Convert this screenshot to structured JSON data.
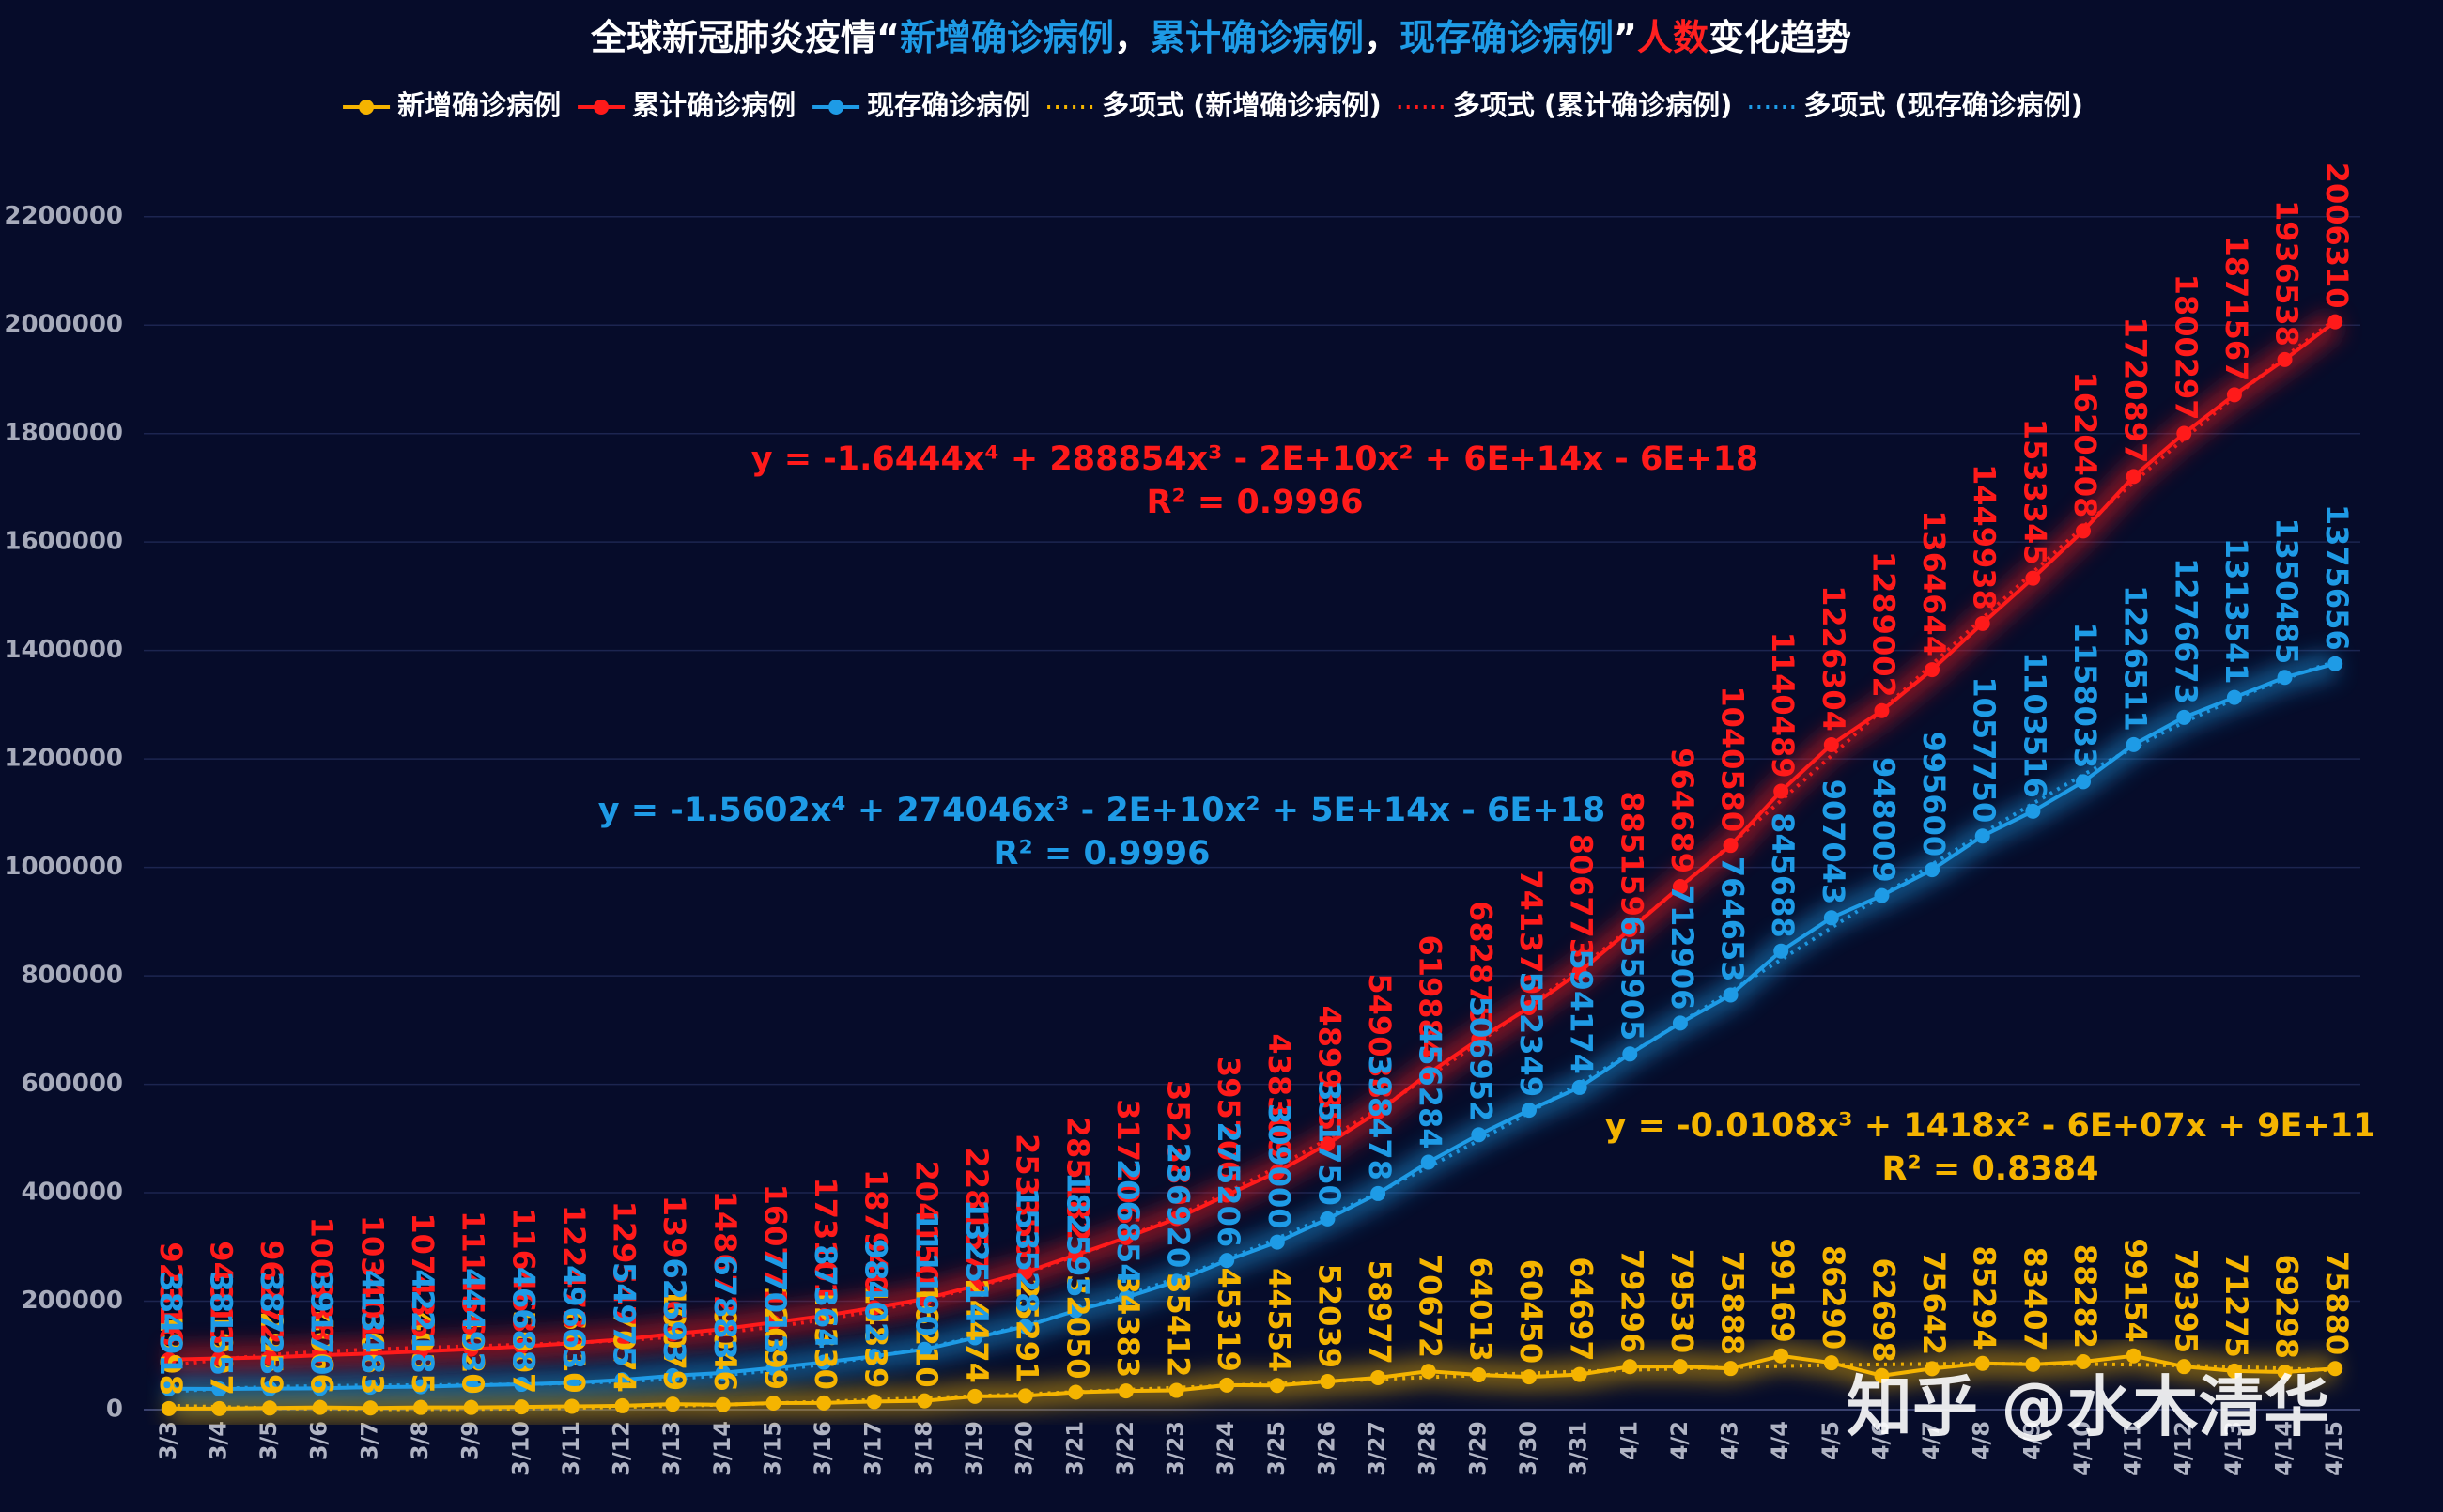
{
  "chart_data": {
    "type": "line",
    "title_parts": [
      {
        "text": "全球新冠肺炎疫情“",
        "color": "#ffffff"
      },
      {
        "text": "新增确诊病例",
        "color": "#1e9be6"
      },
      {
        "text": "，",
        "color": "#ffffff"
      },
      {
        "text": "累计确诊病例",
        "color": "#1e9be6"
      },
      {
        "text": "，",
        "color": "#ffffff"
      },
      {
        "text": "现存确诊病例",
        "color": "#1e9be6"
      },
      {
        "text": "”",
        "color": "#ffffff"
      },
      {
        "text": "人数",
        "color": "#ff2020"
      },
      {
        "text": "变化趋势",
        "color": "#ffffff"
      }
    ],
    "categories": [
      "3/3",
      "3/4",
      "3/5",
      "3/6",
      "3/7",
      "3/8",
      "3/9",
      "3/10",
      "3/11",
      "3/12",
      "3/13",
      "3/14",
      "3/15",
      "3/16",
      "3/17",
      "3/18",
      "3/19",
      "3/20",
      "3/21",
      "3/22",
      "3/23",
      "3/24",
      "3/25",
      "3/26",
      "3/27",
      "3/28",
      "3/29",
      "3/30",
      "3/31",
      "4/1",
      "4/2",
      "4/3",
      "4/4",
      "4/5",
      "4/6",
      "4/7",
      "4/8",
      "4/9",
      "4/10",
      "4/11",
      "4/12",
      "4/13",
      "4/14",
      "4/15"
    ],
    "series": [
      {
        "name": "新增确诊病例",
        "color": "#f5b400",
        "values": [
          1998,
          1997,
          2959,
          4066,
          3063,
          4035,
          4020,
          5007,
          6010,
          7074,
          10079,
          9046,
          12099,
          12330,
          14839,
          16210,
          24474,
          25291,
          32050,
          34383,
          35412,
          45319,
          44554,
          52039,
          58977,
          70672,
          64013,
          60450,
          64697,
          79296,
          79530,
          75888,
          99169,
          86290,
          62698,
          75642,
          85294,
          83407,
          88282,
          99154,
          79395,
          71275,
          69298,
          75880
        ],
        "trendline": {
          "name": "多项式 (新增确诊病例)",
          "degree": 3,
          "equation": "y = -0.0108x³ + 1418x² - 6E+07x + 9E+11",
          "r2": "R² = 0.8384"
        }
      },
      {
        "name": "累计确诊病例",
        "color": "#ff1a1a",
        "values": [
          92316,
          94313,
          96272,
          100338,
          103401,
          107436,
          111456,
          116463,
          122473,
          129547,
          139626,
          148672,
          160771,
          173101,
          187940,
          204150,
          228157,
          253356,
          285182,
          317206,
          352380,
          395700,
          438309,
          489935,
          549038,
          619884,
          682875,
          741370,
          806773,
          885159,
          964689,
          1040580,
          1140489,
          1226304,
          1289002,
          1364644,
          1449938,
          1533345,
          1620408,
          1720897,
          1800297,
          1871567,
          1936538,
          2006310
        ],
        "trendline": {
          "name": "多项式 (累计确诊病例)",
          "degree": 4,
          "equation": "y = -1.6444x⁴ + 288854x³ - 2E+10x² + 6E+14x - 6E+18",
          "r2": "R² = 0.9996"
        }
      },
      {
        "name": "现存确诊病例",
        "color": "#1e9be6",
        "values": [
          38491,
          38155,
          38723,
          39170,
          41348,
          42218,
          44493,
          46688,
          49663,
          54975,
          62593,
          67883,
          77013,
          87364,
          98402,
          111190,
          132514,
          153528,
          182595,
          206854,
          236920,
          275206,
          309000,
          351750,
          398478,
          456284,
          506952,
          552349,
          594174,
          655905,
          712906,
          764653,
          845688,
          907043,
          948009,
          995600,
          1057750,
          1103516,
          1158033,
          1226511,
          1276673,
          1313541,
          1350485,
          1375656
        ],
        "trendline": {
          "name": "多项式 (现存确诊病例)",
          "degree": 4,
          "equation": "y = -1.5602x⁴ + 274046x³ - 2E+10x² + 5E+14x - 6E+18",
          "r2": "R² = 0.9996"
        }
      }
    ],
    "ylim": [
      0,
      2300000
    ],
    "yticks": [
      0,
      200000,
      400000,
      600000,
      800000,
      1000000,
      1200000,
      1400000,
      1600000,
      1800000,
      2000000,
      2200000
    ],
    "grid": true,
    "legend": "top",
    "watermark": "知乎 @水木清华"
  }
}
